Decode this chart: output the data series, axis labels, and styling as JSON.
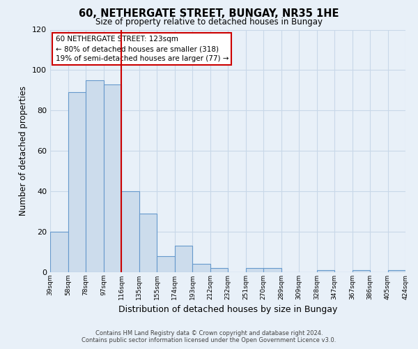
{
  "title": "60, NETHERGATE STREET, BUNGAY, NR35 1HE",
  "subtitle": "Size of property relative to detached houses in Bungay",
  "xlabel": "Distribution of detached houses by size in Bungay",
  "ylabel": "Number of detached properties",
  "bar_values": [
    20,
    89,
    95,
    93,
    40,
    29,
    8,
    13,
    4,
    2,
    0,
    2,
    2,
    0,
    0,
    1,
    0,
    1,
    0,
    1
  ],
  "bar_labels": [
    "39sqm",
    "58sqm",
    "78sqm",
    "97sqm",
    "116sqm",
    "135sqm",
    "155sqm",
    "174sqm",
    "193sqm",
    "212sqm",
    "232sqm",
    "251sqm",
    "270sqm",
    "289sqm",
    "309sqm",
    "328sqm",
    "347sqm",
    "367sqm",
    "386sqm",
    "405sqm",
    "424sqm"
  ],
  "bar_color": "#ccdcec",
  "bar_edge_color": "#6699cc",
  "highlight_line_color": "#cc0000",
  "highlight_bar_index": 4,
  "box_text_line1": "60 NETHERGATE STREET: 123sqm",
  "box_text_line2": "← 80% of detached houses are smaller (318)",
  "box_text_line3": "19% of semi-detached houses are larger (77) →",
  "box_facecolor": "#ffffff",
  "box_edgecolor": "#cc0000",
  "ylim": [
    0,
    120
  ],
  "yticks": [
    0,
    20,
    40,
    60,
    80,
    100,
    120
  ],
  "grid_color": "#c8d8e8",
  "footer_line1": "Contains HM Land Registry data © Crown copyright and database right 2024.",
  "footer_line2": "Contains public sector information licensed under the Open Government Licence v3.0.",
  "background_color": "#e8f0f8",
  "plot_background_color": "#e8f0f8"
}
